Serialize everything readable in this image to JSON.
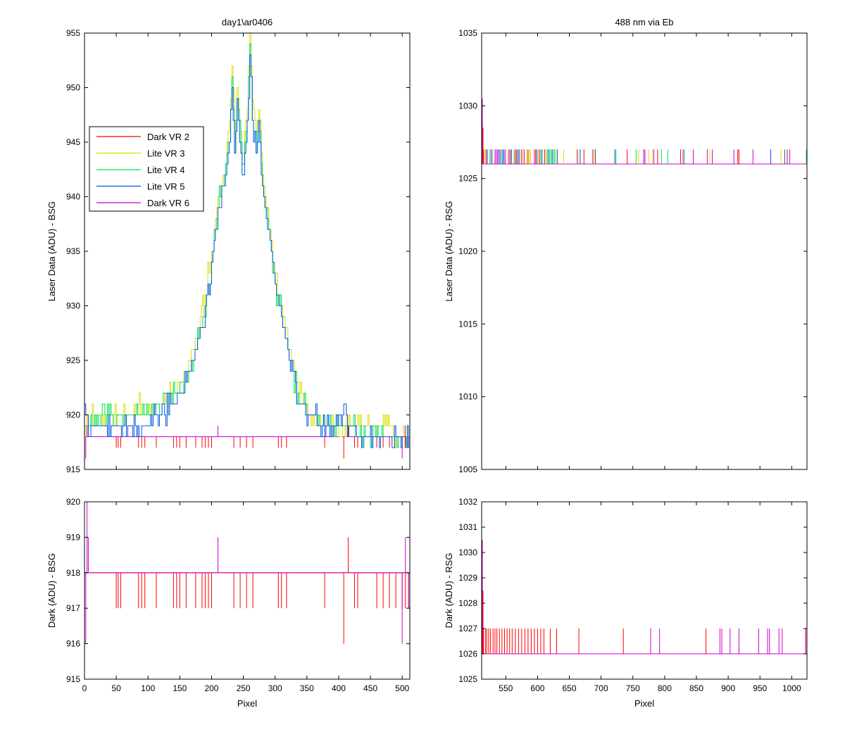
{
  "figure": {
    "left_title": "day1\\ar0406",
    "right_title": "488 nm via Eb",
    "xlabel": "Pixel"
  },
  "legend": {
    "position": "upper-left of top-left plot",
    "entries": [
      {
        "label": "Dark VR 2",
        "color": "#ff0000"
      },
      {
        "label": "Lite VR 3",
        "color": "#dddd00"
      },
      {
        "label": "Lite VR 4",
        "color": "#00dd55"
      },
      {
        "label": "Lite VR 5",
        "color": "#0055dd"
      },
      {
        "label": "Dark VR 6",
        "color": "#cc00cc"
      }
    ]
  },
  "chart_data": [
    {
      "id": "top-left",
      "type": "line",
      "title": "day1\\ar0406",
      "xlabel": "",
      "ylabel": "Laser Data (ADU) - BSG",
      "xlim": [
        0,
        512
      ],
      "ylim": [
        915,
        955
      ],
      "xticks": [
        0,
        50,
        100,
        150,
        200,
        250,
        300,
        350,
        400,
        450,
        500
      ],
      "xtick_labels_visible": false,
      "yticks": [
        915,
        920,
        925,
        930,
        935,
        940,
        945,
        950,
        955
      ],
      "series": [
        {
          "name": "Dark VR 2",
          "color": "#ff0000",
          "points": [
            [
              0,
              918
            ],
            [
              512,
              918
            ]
          ],
          "dips": [
            [
              50,
              917
            ],
            [
              53,
              917
            ],
            [
              57,
              917
            ],
            [
              85,
              917
            ],
            [
              90,
              917
            ],
            [
              95,
              917
            ],
            [
              113,
              917
            ],
            [
              140,
              917
            ],
            [
              145,
              917
            ],
            [
              150,
              917
            ],
            [
              160,
              917
            ],
            [
              175,
              917
            ],
            [
              185,
              917
            ],
            [
              190,
              917
            ],
            [
              195,
              917
            ],
            [
              200,
              917
            ],
            [
              235,
              917
            ],
            [
              245,
              917
            ],
            [
              255,
              917
            ],
            [
              265,
              917
            ],
            [
              305,
              917
            ],
            [
              310,
              917
            ],
            [
              318,
              917
            ],
            [
              378,
              917
            ],
            [
              408,
              916
            ],
            [
              415,
              919
            ],
            [
              425,
              917
            ],
            [
              430,
              917
            ],
            [
              460,
              917
            ],
            [
              470,
              917
            ],
            [
              480,
              917
            ],
            [
              490,
              917
            ],
            [
              500,
              917
            ],
            [
              505,
              917
            ],
            [
              510,
              917
            ]
          ]
        },
        {
          "name": "Lite VR 3",
          "color": "#dddd00",
          "points": [
            [
              0,
              919
            ],
            [
              10,
              920
            ],
            [
              30,
              920
            ],
            [
              60,
              920
            ],
            [
              90,
              921
            ],
            [
              120,
              921
            ],
            [
              140,
              922
            ],
            [
              160,
              924
            ],
            [
              175,
              927
            ],
            [
              190,
              931
            ],
            [
              200,
              935
            ],
            [
              210,
              940
            ],
            [
              220,
              942
            ],
            [
              228,
              947
            ],
            [
              232,
              952
            ],
            [
              236,
              945
            ],
            [
              240,
              950
            ],
            [
              248,
              944
            ],
            [
              255,
              948
            ],
            [
              260,
              954
            ],
            [
              265,
              948
            ],
            [
              270,
              946
            ],
            [
              275,
              948
            ],
            [
              280,
              942
            ],
            [
              290,
              938
            ],
            [
              300,
              933
            ],
            [
              310,
              930
            ],
            [
              320,
              927
            ],
            [
              330,
              924
            ],
            [
              340,
              922
            ],
            [
              355,
              920
            ],
            [
              375,
              919
            ],
            [
              395,
              919
            ],
            [
              415,
              919
            ],
            [
              440,
              919
            ],
            [
              470,
              919
            ],
            [
              500,
              918
            ],
            [
              512,
              918
            ]
          ]
        },
        {
          "name": "Lite VR 4",
          "color": "#00dd55",
          "points": [
            [
              0,
              919
            ],
            [
              10,
              919
            ],
            [
              30,
              920
            ],
            [
              60,
              920
            ],
            [
              90,
              920
            ],
            [
              120,
              921
            ],
            [
              140,
              922
            ],
            [
              160,
              923
            ],
            [
              175,
              926
            ],
            [
              190,
              930
            ],
            [
              200,
              934
            ],
            [
              210,
              939
            ],
            [
              220,
              942
            ],
            [
              228,
              946
            ],
            [
              232,
              951
            ],
            [
              236,
              944
            ],
            [
              240,
              949
            ],
            [
              248,
              943
            ],
            [
              255,
              947
            ],
            [
              260,
              953
            ],
            [
              265,
              947
            ],
            [
              270,
              945
            ],
            [
              275,
              947
            ],
            [
              280,
              941
            ],
            [
              290,
              937
            ],
            [
              300,
              932
            ],
            [
              310,
              929
            ],
            [
              320,
              926
            ],
            [
              330,
              923
            ],
            [
              340,
              921
            ],
            [
              355,
              920
            ],
            [
              375,
              919
            ],
            [
              395,
              919
            ],
            [
              415,
              919
            ],
            [
              440,
              918
            ],
            [
              470,
              918
            ],
            [
              500,
              918
            ],
            [
              512,
              918
            ]
          ]
        },
        {
          "name": "Lite VR 5",
          "color": "#0055dd",
          "points": [
            [
              0,
              921
            ],
            [
              5,
              918
            ],
            [
              10,
              919
            ],
            [
              30,
              919
            ],
            [
              60,
              919
            ],
            [
              90,
              919
            ],
            [
              120,
              920
            ],
            [
              140,
              921
            ],
            [
              160,
              923
            ],
            [
              175,
              926
            ],
            [
              190,
              930
            ],
            [
              200,
              934
            ],
            [
              210,
              939
            ],
            [
              220,
              941
            ],
            [
              228,
              945
            ],
            [
              232,
              950
            ],
            [
              236,
              944
            ],
            [
              240,
              948
            ],
            [
              248,
              942
            ],
            [
              255,
              946
            ],
            [
              260,
              953
            ],
            [
              265,
              946
            ],
            [
              270,
              944
            ],
            [
              275,
              946
            ],
            [
              280,
              941
            ],
            [
              290,
              937
            ],
            [
              300,
              932
            ],
            [
              310,
              929
            ],
            [
              320,
              926
            ],
            [
              330,
              923
            ],
            [
              340,
              921
            ],
            [
              355,
              920
            ],
            [
              375,
              919
            ],
            [
              395,
              919
            ],
            [
              410,
              921
            ],
            [
              415,
              919
            ],
            [
              440,
              918
            ],
            [
              470,
              918
            ],
            [
              500,
              918
            ],
            [
              512,
              918
            ]
          ]
        },
        {
          "name": "Dark VR 6",
          "color": "#cc00cc",
          "points": [
            [
              0,
              918
            ],
            [
              512,
              918
            ]
          ],
          "dips": [
            [
              2,
              916
            ],
            [
              4,
              920
            ],
            [
              6,
              919
            ],
            [
              210,
              919
            ],
            [
              500,
              916
            ],
            [
              505,
              919
            ],
            [
              510,
              917
            ]
          ]
        }
      ]
    },
    {
      "id": "top-right",
      "type": "line",
      "title": "488 nm via Eb",
      "xlabel": "",
      "ylabel": "Laser Data (ADU) - RSG",
      "xlim": [
        512,
        1024
      ],
      "ylim": [
        1005,
        1035
      ],
      "xticks": [
        550,
        600,
        650,
        700,
        750,
        800,
        850,
        900,
        950,
        1000
      ],
      "xtick_labels_visible": false,
      "yticks": [
        1005,
        1010,
        1015,
        1020,
        1025,
        1030,
        1035
      ],
      "baseline": 1026,
      "spike_to": 1027,
      "start_spike": 1030.5,
      "series_colors": [
        "#ff0000",
        "#dddd00",
        "#00dd55",
        "#0055dd",
        "#cc00cc"
      ]
    },
    {
      "id": "bottom-left",
      "type": "line",
      "title": "",
      "xlabel": "Pixel",
      "ylabel": "Dark (ADU) - BSG",
      "xlim": [
        0,
        512
      ],
      "ylim": [
        915,
        920
      ],
      "xticks": [
        0,
        50,
        100,
        150,
        200,
        250,
        300,
        350,
        400,
        450,
        500
      ],
      "xtick_labels_visible": true,
      "yticks": [
        915,
        916,
        917,
        918,
        919,
        920
      ],
      "series": [
        {
          "name": "Dark VR 2",
          "color": "#ff0000",
          "baseline": 918,
          "dips": [
            [
              50,
              917
            ],
            [
              53,
              917
            ],
            [
              57,
              917
            ],
            [
              85,
              917
            ],
            [
              90,
              917
            ],
            [
              95,
              917
            ],
            [
              113,
              917
            ],
            [
              140,
              917
            ],
            [
              145,
              917
            ],
            [
              150,
              917
            ],
            [
              160,
              917
            ],
            [
              175,
              917
            ],
            [
              185,
              917
            ],
            [
              190,
              917
            ],
            [
              195,
              917
            ],
            [
              200,
              917
            ],
            [
              235,
              917
            ],
            [
              245,
              917
            ],
            [
              255,
              917
            ],
            [
              265,
              917
            ],
            [
              305,
              917
            ],
            [
              310,
              917
            ],
            [
              318,
              917
            ],
            [
              378,
              917
            ],
            [
              408,
              916
            ],
            [
              415,
              919
            ],
            [
              425,
              917
            ],
            [
              430,
              917
            ],
            [
              460,
              917
            ],
            [
              470,
              917
            ],
            [
              480,
              917
            ],
            [
              490,
              917
            ],
            [
              500,
              917
            ],
            [
              505,
              917
            ],
            [
              510,
              917
            ]
          ]
        },
        {
          "name": "Dark VR 6",
          "color": "#cc00cc",
          "baseline": 918,
          "dips": [
            [
              2,
              916
            ],
            [
              4,
              920
            ],
            [
              6,
              919
            ],
            [
              210,
              919
            ],
            [
              500,
              916
            ],
            [
              505,
              919
            ],
            [
              510,
              917
            ]
          ]
        }
      ]
    },
    {
      "id": "bottom-right",
      "type": "line",
      "title": "",
      "xlabel": "Pixel",
      "ylabel": "Dark (ADU) - RSG",
      "xlim": [
        512,
        1024
      ],
      "ylim": [
        1025,
        1032
      ],
      "xticks": [
        550,
        600,
        650,
        700,
        750,
        800,
        850,
        900,
        950,
        1000
      ],
      "xtick_labels_visible": true,
      "yticks": [
        1025,
        1026,
        1027,
        1028,
        1029,
        1030,
        1031,
        1032
      ],
      "series": [
        {
          "name": "Dark VR 2",
          "color": "#ff0000",
          "baseline": 1026,
          "start_spike": 1030.5,
          "spikes": [
            515,
            518,
            520,
            523,
            526,
            530,
            533,
            536,
            540,
            544,
            548,
            552,
            556,
            560,
            565,
            570,
            575,
            580,
            585,
            590,
            595,
            600,
            605,
            610,
            620,
            630,
            665,
            735,
            865,
            1022
          ]
        },
        {
          "name": "Dark VR 6",
          "color": "#cc00cc",
          "baseline": 1026,
          "spikes": [
            778,
            792,
            887,
            890,
            903,
            917,
            948,
            962,
            965,
            980,
            985,
            1022
          ]
        }
      ]
    }
  ]
}
